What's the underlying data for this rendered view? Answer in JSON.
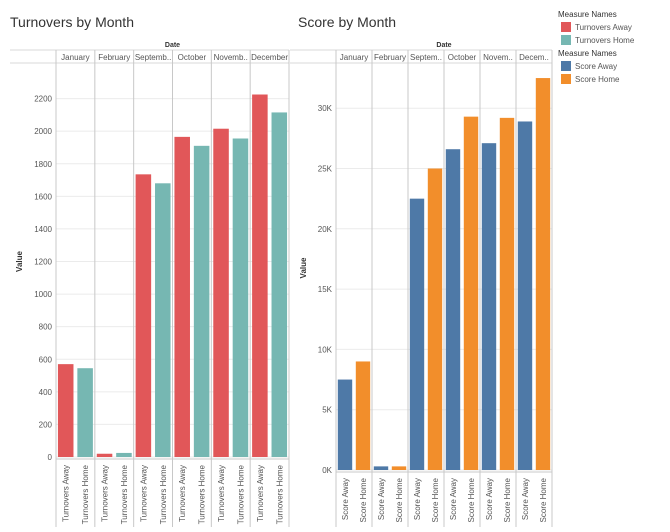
{
  "chart_data": [
    {
      "type": "bar",
      "title": "Turnovers by Month",
      "column_header": "Date",
      "ylabel": "Value",
      "groups": [
        "January",
        "February",
        "Septemb..",
        "October",
        "Novemb..",
        "December"
      ],
      "bars": [
        "Turnovers Away",
        "Turnovers Home"
      ],
      "series": [
        {
          "name": "Turnovers Away",
          "color": "#e15759",
          "values": [
            570,
            20,
            1735,
            1965,
            2015,
            2225
          ]
        },
        {
          "name": "Turnovers Home",
          "color": "#76b7b2",
          "values": [
            545,
            25,
            1680,
            1910,
            1955,
            2115
          ]
        }
      ],
      "yticks": [
        "0",
        "200",
        "400",
        "600",
        "800",
        "1000",
        "1200",
        "1400",
        "1600",
        "1800",
        "2000",
        "2200"
      ],
      "ytick_values": [
        0,
        200,
        400,
        600,
        800,
        1000,
        1200,
        1400,
        1600,
        1800,
        2000,
        2200
      ],
      "ylim": [
        0,
        2400
      ],
      "legend_title": "Measure Names"
    },
    {
      "type": "bar",
      "title": "Score by Month",
      "column_header": "Date",
      "ylabel": "Value",
      "groups": [
        "January",
        "February",
        "Septem..",
        "October",
        "Novem..",
        "Decem.."
      ],
      "bars": [
        "Score Away",
        "Score Home"
      ],
      "series": [
        {
          "name": "Score Away",
          "color": "#4e79a7",
          "values": [
            7500,
            300,
            22500,
            26600,
            27100,
            28900
          ]
        },
        {
          "name": "Score Home",
          "color": "#f28e2b",
          "values": [
            9000,
            300,
            25000,
            29300,
            29200,
            32500
          ]
        }
      ],
      "yticks": [
        "0K",
        "5K",
        "10K",
        "15K",
        "20K",
        "25K",
        "30K"
      ],
      "ytick_values": [
        0,
        5000,
        10000,
        15000,
        20000,
        25000,
        30000
      ],
      "ylim": [
        0,
        33500
      ],
      "legend_title": "Measure Names"
    }
  ]
}
